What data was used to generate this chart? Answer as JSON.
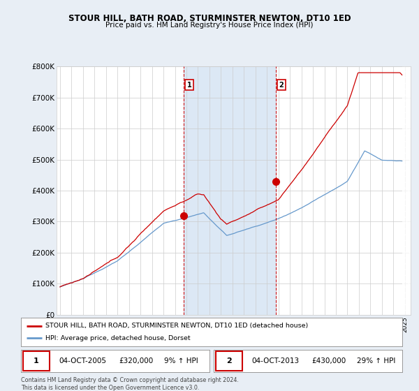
{
  "title": "STOUR HILL, BATH ROAD, STURMINSTER NEWTON, DT10 1ED",
  "subtitle": "Price paid vs. HM Land Registry's House Price Index (HPI)",
  "ylim": [
    0,
    800000
  ],
  "yticks": [
    0,
    100000,
    200000,
    300000,
    400000,
    500000,
    600000,
    700000,
    800000
  ],
  "ytick_labels": [
    "£0",
    "£100K",
    "£200K",
    "£300K",
    "£400K",
    "£500K",
    "£600K",
    "£700K",
    "£800K"
  ],
  "legend_entries": [
    "STOUR HILL, BATH ROAD, STURMINSTER NEWTON, DT10 1ED (detached house)",
    "HPI: Average price, detached house, Dorset"
  ],
  "sale1": {
    "label": "1",
    "date": "04-OCT-2005",
    "price": "£320,000",
    "hpi": "9% ↑ HPI",
    "x_year": 2005.75
  },
  "sale2": {
    "label": "2",
    "date": "04-OCT-2013",
    "price": "£430,000",
    "hpi": "29% ↑ HPI",
    "x_year": 2013.75
  },
  "footnote": "Contains HM Land Registry data © Crown copyright and database right 2024.\nThis data is licensed under the Open Government Licence v3.0.",
  "line1_color": "#cc0000",
  "line2_color": "#6699cc",
  "vline_color": "#cc0000",
  "background_color": "#e8eef5",
  "plot_bg_color": "#ffffff",
  "shade_color": "#dce8f5",
  "marker1_color": "#cc0000",
  "marker2_color": "#cc0000",
  "xlim_left": 1995.0,
  "xlim_right": 2025.5,
  "hatch_start": 2024.75
}
